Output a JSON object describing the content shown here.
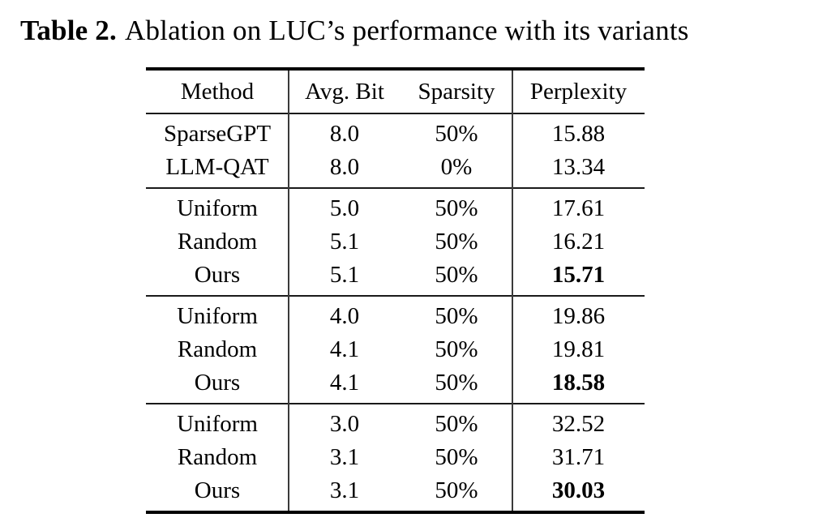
{
  "title": {
    "label": "Table 2.",
    "text": "Ablation on LUC’s performance with its variants"
  },
  "table": {
    "columns": [
      "Method",
      "Avg. Bit",
      "Sparsity",
      "Perplexity"
    ],
    "groups": [
      {
        "rows": [
          {
            "method": "SparseGPT",
            "avg_bit": "8.0",
            "sparsity": "50%",
            "perplexity": "15.88"
          },
          {
            "method": "LLM-QAT",
            "avg_bit": "8.0",
            "sparsity": "0%",
            "perplexity": "13.34"
          }
        ]
      },
      {
        "rows": [
          {
            "method": "Uniform",
            "avg_bit": "5.0",
            "sparsity": "50%",
            "perplexity": "17.61"
          },
          {
            "method": "Random",
            "avg_bit": "5.1",
            "sparsity": "50%",
            "perplexity": "16.21"
          },
          {
            "method": "Ours",
            "avg_bit": "5.1",
            "sparsity": "50%",
            "perplexity": "15.71"
          }
        ]
      },
      {
        "rows": [
          {
            "method": "Uniform",
            "avg_bit": "4.0",
            "sparsity": "50%",
            "perplexity": "19.86"
          },
          {
            "method": "Random",
            "avg_bit": "4.1",
            "sparsity": "50%",
            "perplexity": "19.81"
          },
          {
            "method": "Ours",
            "avg_bit": "4.1",
            "sparsity": "50%",
            "perplexity": "18.58"
          }
        ]
      },
      {
        "rows": [
          {
            "method": "Uniform",
            "avg_bit": "3.0",
            "sparsity": "50%",
            "perplexity": "32.52"
          },
          {
            "method": "Random",
            "avg_bit": "3.1",
            "sparsity": "50%",
            "perplexity": "31.71"
          },
          {
            "method": "Ours",
            "avg_bit": "3.1",
            "sparsity": "50%",
            "perplexity": "30.03"
          }
        ]
      }
    ]
  },
  "colors": {
    "text": "#000000",
    "rule": "#1a1a1a",
    "background": "#ffffff"
  }
}
